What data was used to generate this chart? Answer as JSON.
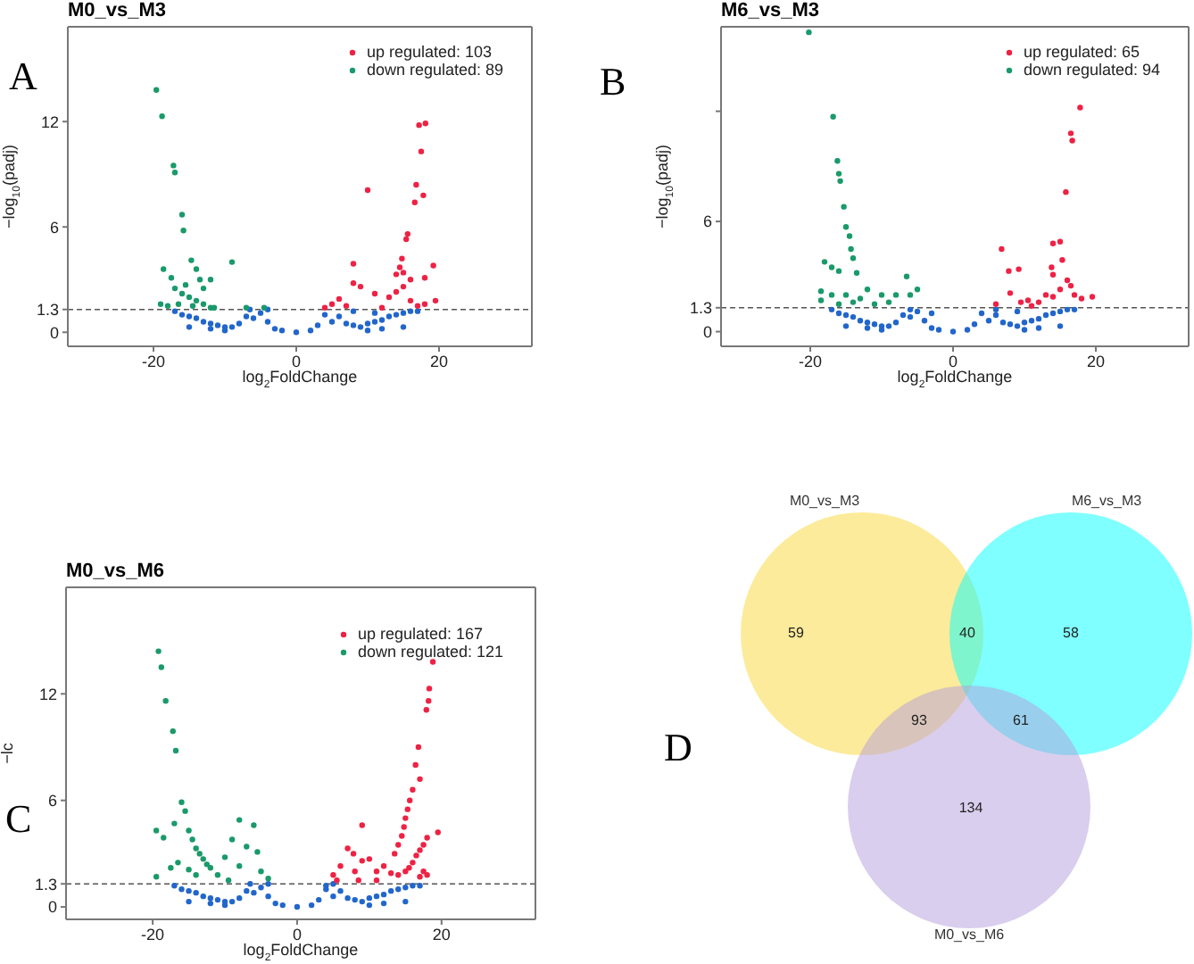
{
  "chart_data": [
    {
      "type": "scatter",
      "title": "M0_vs_M3",
      "xlabel": "log$_{2}$FoldChange",
      "ylabel": "−log$_{10}$(padj)",
      "xlim": [
        -32,
        33
      ],
      "xticks": [
        -20,
        0,
        20
      ],
      "ylim": [
        -0.8,
        17.4
      ],
      "yticks": [
        0,
        1.3,
        6,
        12
      ],
      "legend": "top right",
      "marker": "circle",
      "annotations": [
        "A"
      ],
      "ref_lines": [
        {
          "axis": "y",
          "value": 1.3,
          "line_style": "dashed",
          "color": "#555555"
        }
      ],
      "series": [
        {
          "color": "#2266cc",
          "x": [
            -17,
            -16,
            -15,
            -14,
            -13,
            -12,
            -11,
            -10,
            -9,
            -8,
            -7,
            -6,
            -5,
            -4,
            -3,
            -2,
            0,
            2,
            3,
            4,
            5,
            6,
            7,
            8,
            9,
            10,
            11,
            12,
            13,
            14,
            15,
            16,
            17,
            -15,
            -10,
            10,
            15,
            -12,
            12,
            -6.5,
            -4,
            8,
            11
          ],
          "values": [
            1.2,
            1.0,
            0.9,
            0.8,
            0.6,
            0.5,
            0.4,
            0.3,
            0.3,
            0.5,
            0.9,
            0.8,
            1.1,
            0.6,
            0.2,
            0.1,
            0,
            0.1,
            0.4,
            1.0,
            0.6,
            0.9,
            0.5,
            0.4,
            0.3,
            0.5,
            0.6,
            0.7,
            0.9,
            1.0,
            1.1,
            1.2,
            1.2,
            0.3,
            0.1,
            0.1,
            0.3,
            0.2,
            0.2,
            1.3,
            1.3,
            1.2,
            1.1
          ]
        },
        {
          "name": "up regulated: 103",
          "color": "#ee2244",
          "x": [
            10,
            16.8,
            17.8,
            17.2,
            18.1,
            17.5,
            16.6,
            15.6,
            15.4,
            14.8,
            14.5,
            14,
            15,
            18,
            19.2,
            19.5,
            8,
            8,
            9,
            11,
            6,
            5,
            7,
            13,
            14,
            15,
            16,
            17,
            18,
            16,
            12,
            4
          ],
          "values": [
            8.1,
            8.4,
            7.8,
            11.8,
            11.9,
            10.3,
            7.4,
            5.6,
            5.3,
            4.2,
            3.7,
            3.3,
            3.4,
            3.1,
            3.8,
            1.8,
            3.9,
            2.8,
            2.6,
            2.2,
            1.9,
            1.6,
            1.5,
            2.0,
            2.3,
            2.6,
            3.0,
            1.5,
            1.6,
            1.8,
            1.4,
            1.4
          ]
        },
        {
          "name": "down regulated: 89",
          "color": "#1a9a6a",
          "x": [
            -19.6,
            -18.8,
            -17.2,
            -17,
            -16,
            -15.8,
            -18.6,
            -17.5,
            -14.7,
            -14,
            -13.5,
            -12,
            -9,
            -19,
            -18,
            -16,
            -15,
            -14,
            -13,
            -12,
            -17,
            -15.5,
            -13,
            -7,
            -4.5,
            -16.5,
            -14.5,
            -11.5
          ],
          "values": [
            13.8,
            12.3,
            9.5,
            9.1,
            6.7,
            5.8,
            3.6,
            3.1,
            4.1,
            3.6,
            3.0,
            3.0,
            4.0,
            1.6,
            1.5,
            2.2,
            2.0,
            1.8,
            1.6,
            1.4,
            2.5,
            2.7,
            2.5,
            1.4,
            1.4,
            1.6,
            1.5,
            1.4
          ]
        }
      ]
    },
    {
      "type": "scatter",
      "title": "M6_vs_M3",
      "xlabel": "log$_{2}$FoldChange",
      "ylabel": "−log$_{10}$(padj)",
      "xlim": [
        -32.5,
        33
      ],
      "xticks": [
        -20,
        0,
        20
      ],
      "ylim": [
        -0.8,
        16.6
      ],
      "yticks": [
        0,
        1.3,
        6,
        {
          "value": 12,
          "label": null
        }
      ],
      "legend": "top right",
      "marker": "circle",
      "annotations": [
        "B"
      ],
      "ref_lines": [
        {
          "axis": "y",
          "value": 1.3,
          "line_style": "dashed",
          "color": "#555555"
        }
      ],
      "series": [
        {
          "color": "#2266cc",
          "x": [
            -17,
            -16,
            -15,
            -14,
            -13,
            -12,
            -11,
            -10,
            -9,
            -8,
            -7,
            -6,
            -5,
            -4,
            -3,
            -2,
            0,
            2,
            3,
            4,
            5,
            6,
            7,
            8,
            9,
            10,
            11,
            12,
            13,
            14,
            15,
            16,
            17,
            -15,
            -10,
            10,
            15,
            -12,
            12,
            -6,
            -3,
            6,
            9
          ],
          "values": [
            1.2,
            1.0,
            0.9,
            0.8,
            0.6,
            0.5,
            0.4,
            0.3,
            0.3,
            0.5,
            0.9,
            0.8,
            1.1,
            0.6,
            0.2,
            0.1,
            0,
            0.1,
            0.4,
            1.0,
            0.6,
            0.9,
            0.5,
            0.4,
            0.3,
            0.5,
            0.6,
            0.7,
            0.9,
            1.0,
            1.1,
            1.2,
            1.2,
            0.3,
            0.1,
            0.1,
            0.3,
            0.2,
            0.2,
            1.2,
            1.0,
            1.2,
            1.1
          ]
        },
        {
          "name": "up regulated: 65",
          "color": "#ee2244",
          "x": [
            17.8,
            16.5,
            16.7,
            15.8,
            15,
            14,
            15.3,
            13.8,
            14,
            16,
            16.5,
            6.8,
            7.8,
            9.2,
            8,
            9.5,
            10.5,
            12,
            13,
            14,
            15,
            17,
            18,
            19.5,
            6,
            11
          ],
          "values": [
            12.2,
            10.8,
            10.4,
            7.6,
            4.9,
            4.8,
            3.9,
            3.5,
            3.1,
            2.8,
            2.5,
            4.5,
            3.3,
            3.4,
            2.1,
            1.6,
            1.7,
            1.6,
            2.0,
            1.9,
            2.3,
            2.0,
            1.8,
            1.9,
            1.5,
            1.4
          ]
        },
        {
          "name": "down regulated: 94",
          "color": "#1a9a6a",
          "x": [
            -20.2,
            -16.8,
            -16.2,
            -16,
            -15.8,
            -15.3,
            -15,
            -14.5,
            -14.3,
            -14,
            -13.5,
            -18,
            -17,
            -16,
            -18.5,
            -18.5,
            -17,
            -15,
            -13,
            -12,
            -10,
            -8,
            -6.5,
            -5,
            -6,
            -9,
            -11,
            -16,
            -14
          ],
          "values": [
            16.3,
            11.7,
            9.3,
            8.6,
            8.2,
            6.8,
            5.7,
            5.2,
            4.5,
            4.0,
            3.2,
            3.8,
            3.5,
            3.3,
            2.2,
            1.7,
            2.0,
            2.0,
            1.8,
            2.3,
            2.0,
            2.0,
            3.0,
            2.3,
            2.0,
            1.6,
            1.5,
            1.5,
            1.6
          ]
        }
      ]
    },
    {
      "type": "scatter",
      "title": "M0_vs_M6",
      "xlabel": "log$_{2}$FoldChange",
      "ylabel": "−lc",
      "xlim": [
        -32,
        33
      ],
      "xticks": [
        -20,
        0,
        20
      ],
      "ylim": [
        -0.7,
        18
      ],
      "yticks": [
        0,
        1.3,
        6,
        12
      ],
      "legend": "top right",
      "marker": "circle",
      "annotations": [
        "C"
      ],
      "ref_lines": [
        {
          "axis": "y",
          "value": 1.3,
          "line_style": "dashed",
          "color": "#555555"
        }
      ],
      "series": [
        {
          "color": "#2266cc",
          "x": [
            -17,
            -16,
            -15,
            -14,
            -13,
            -12,
            -11,
            -10,
            -9,
            -8,
            -7,
            -6,
            -5,
            -4,
            -3,
            -2,
            0,
            2,
            3,
            4,
            5,
            6,
            7,
            8,
            9,
            10,
            11,
            12,
            13,
            14,
            15,
            16,
            17,
            -15,
            -10,
            10,
            15,
            -12,
            12,
            -4,
            -6.5,
            4,
            5
          ],
          "values": [
            1.2,
            1.0,
            0.9,
            0.8,
            0.6,
            0.5,
            0.4,
            0.3,
            0.3,
            0.5,
            0.9,
            0.8,
            1.1,
            0.6,
            0.2,
            0.1,
            0,
            0.1,
            0.4,
            1.0,
            0.6,
            0.9,
            0.5,
            0.4,
            0.3,
            0.5,
            0.6,
            0.7,
            0.9,
            1.0,
            1.1,
            1.2,
            1.2,
            0.3,
            0.1,
            0.1,
            0.3,
            0.2,
            0.2,
            1.3,
            1.3,
            1.2,
            1.3
          ]
        },
        {
          "name": "up regulated: 167",
          "color": "#ee2244",
          "x": [
            18.8,
            18.3,
            18.2,
            17.9,
            16.8,
            16.4,
            17,
            16,
            15.6,
            15.3,
            15,
            14.8,
            14.5,
            14,
            13.5,
            19.5,
            18,
            17.5,
            17,
            16.5,
            16,
            15.5,
            15,
            14,
            17.5,
            18,
            9,
            7,
            7.8,
            9,
            10,
            6,
            5,
            8,
            11,
            12,
            13,
            5.5,
            8.5,
            11,
            17
          ],
          "values": [
            13.8,
            12.3,
            11.6,
            11.1,
            9.0,
            8.0,
            7.2,
            6.6,
            6.0,
            5.5,
            5.0,
            4.5,
            4.0,
            3.5,
            3.0,
            4.2,
            3.9,
            3.5,
            3.2,
            2.9,
            2.5,
            2.2,
            2.0,
            1.8,
            2.0,
            1.8,
            4.6,
            3.3,
            3.0,
            2.6,
            2.7,
            2.3,
            1.8,
            2.0,
            2.0,
            2.3,
            1.9,
            1.5,
            1.5,
            1.5,
            1.7
          ]
        },
        {
          "name": "down regulated: 121",
          "color": "#1a9a6a",
          "x": [
            -19.2,
            -18.8,
            -18.2,
            -17.2,
            -16.8,
            -16,
            -15.5,
            -17,
            -19.5,
            -18.5,
            -15,
            -14.5,
            -14,
            -13.5,
            -13,
            -12.5,
            -12,
            -16.5,
            -17.5,
            -19.5,
            -15,
            -8,
            -6,
            -9,
            -7,
            -5.5,
            -10,
            -8,
            -5,
            -11,
            -4,
            -9.5,
            -14
          ],
          "values": [
            14.4,
            13.5,
            11.6,
            9.9,
            8.8,
            5.9,
            5.4,
            4.7,
            4.3,
            3.9,
            4.3,
            3.8,
            3.3,
            3.0,
            2.7,
            2.4,
            2.2,
            2.5,
            2.2,
            1.7,
            2.1,
            4.9,
            4.6,
            3.8,
            3.4,
            3.1,
            2.8,
            2.3,
            2.0,
            1.8,
            1.6,
            1.5,
            1.8
          ]
        }
      ]
    },
    {
      "type": "other",
      "categories": [
        null,
        null,
        null,
        null,
        null,
        null
      ],
      "values": [
        59,
        40,
        58,
        93,
        61,
        134
      ],
      "data_labels": true,
      "annotations": [
        "D",
        "M0_vs_M3",
        "M6_vs_M3",
        "M0_vs_M6"
      ]
    }
  ]
}
